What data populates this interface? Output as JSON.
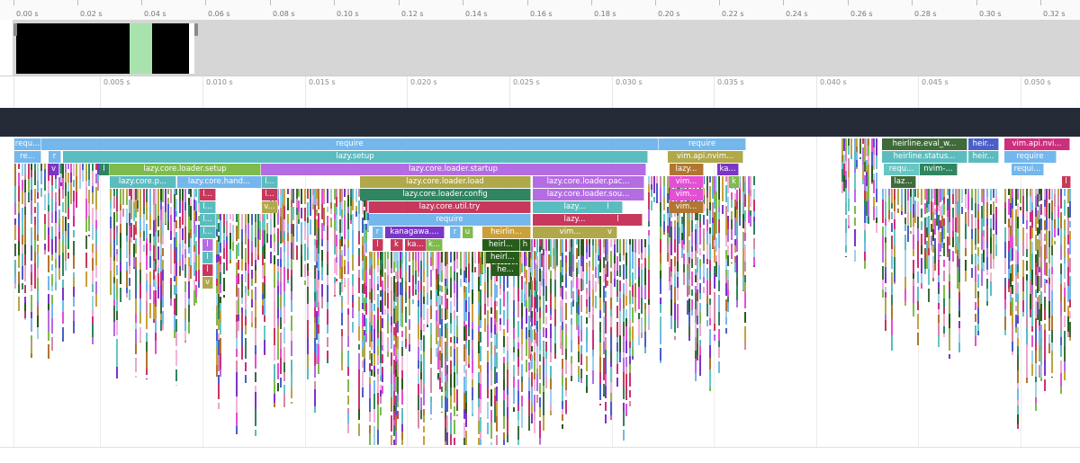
{
  "overview_ruler": {
    "ticks": [
      "0.00 s",
      "0.02 s",
      "0.04 s",
      "0.06 s",
      "0.08 s",
      "0.10 s",
      "0.12 s",
      "0.14 s",
      "0.16 s",
      "0.18 s",
      "0.20 s",
      "0.22 s",
      "0.24 s",
      "0.26 s",
      "0.28 s",
      "0.30 s",
      "0.32 s"
    ]
  },
  "zoom_ruler": {
    "ticks": [
      "0.005 s",
      "0.010 s",
      "0.015 s",
      "0.020 s",
      "0.025 s",
      "0.030 s",
      "0.035 s",
      "0.040 s",
      "0.045 s",
      "0.050 s"
    ]
  },
  "colors": {
    "blue": "#74b7ec",
    "teal": "#5bbcbf",
    "green": "#7fba4e",
    "purple": "#b46ce3",
    "olive": "#b0a84a",
    "darkgreen": "#2f8560",
    "crimson": "#c7385c",
    "magenta": "#e44fd4",
    "navy": "#4b5fc7",
    "darkolive": "#3f6b3a",
    "brown": "#b1762f",
    "forest": "#275c1b",
    "pink": "#cc2f7e",
    "violet": "#7b35c7",
    "orange": "#c9a03a",
    "lightteal": "#67c7c4"
  },
  "frames": [
    {
      "label": "requ...",
      "color": "blue"
    },
    {
      "label": "require",
      "color": "blue"
    },
    {
      "label": "require",
      "color": "blue"
    },
    {
      "label": "heirline.eval_w...",
      "color": "darkolive"
    },
    {
      "label": "heir...",
      "color": "navy"
    },
    {
      "label": "vim.api.nvi...",
      "color": "pink"
    },
    {
      "label": "re...",
      "color": "blue"
    },
    {
      "label": "r",
      "color": "blue"
    },
    {
      "label": "lazy.setup",
      "color": "teal"
    },
    {
      "label": "vim.api.nvim...",
      "color": "olive"
    },
    {
      "label": "heirline.status...",
      "color": "teal"
    },
    {
      "label": "heir...",
      "color": "teal"
    },
    {
      "label": "require",
      "color": "blue"
    },
    {
      "label": "v",
      "color": "violet"
    },
    {
      "label": "l",
      "color": "darkgreen"
    },
    {
      "label": "lazy.core.loader.setup",
      "color": "green"
    },
    {
      "label": "lazy.core.loader.startup",
      "color": "purple"
    },
    {
      "label": "lazy...",
      "color": "brown"
    },
    {
      "label": "ka...",
      "color": "violet"
    },
    {
      "label": "requ...",
      "color": "lightteal"
    },
    {
      "label": "nvim-...",
      "color": "darkgreen"
    },
    {
      "label": "requi...",
      "color": "blue"
    },
    {
      "label": "lazy.core.p...",
      "color": "teal"
    },
    {
      "label": "lazy.core.hand...",
      "color": "blue"
    },
    {
      "label": "l...",
      "color": "teal"
    },
    {
      "label": "lazy.core.loader.load",
      "color": "olive"
    },
    {
      "label": "lazy.core.loader.pac...",
      "color": "purple"
    },
    {
      "label": "vim...",
      "color": "magenta"
    },
    {
      "label": "k",
      "color": "green"
    },
    {
      "label": "laz...",
      "color": "darkolive"
    },
    {
      "label": "l",
      "color": "crimson"
    },
    {
      "label": "l...",
      "color": "crimson"
    },
    {
      "label": "l...",
      "color": "crimson"
    },
    {
      "label": "lazy.core.loader.config",
      "color": "darkgreen"
    },
    {
      "label": "lazy.core.loader.sou...",
      "color": "purple"
    },
    {
      "label": "vim...",
      "color": "magenta"
    },
    {
      "label": "l...",
      "color": "teal"
    },
    {
      "label": "v...",
      "color": "olive"
    },
    {
      "label": "lazy.core.util.try",
      "color": "crimson"
    },
    {
      "label": "lazy...",
      "color": "teal"
    },
    {
      "label": "l",
      "color": "teal"
    },
    {
      "label": "vim...",
      "color": "brown"
    },
    {
      "label": "l...",
      "color": "teal"
    },
    {
      "label": "require",
      "color": "blue"
    },
    {
      "label": "lazy...",
      "color": "crimson"
    },
    {
      "label": "l",
      "color": "crimson"
    },
    {
      "label": "l...",
      "color": "teal"
    },
    {
      "label": "r",
      "color": "blue"
    },
    {
      "label": "kanagawa....",
      "color": "violet"
    },
    {
      "label": "r",
      "color": "blue"
    },
    {
      "label": "u",
      "color": "green"
    },
    {
      "label": "heirlin...",
      "color": "orange"
    },
    {
      "label": "vim...",
      "color": "olive"
    },
    {
      "label": "v",
      "color": "olive"
    },
    {
      "label": "l",
      "color": "purple"
    },
    {
      "label": "l",
      "color": "crimson"
    },
    {
      "label": "k",
      "color": "crimson"
    },
    {
      "label": "ka...",
      "color": "crimson"
    },
    {
      "label": "k...",
      "color": "green"
    },
    {
      "label": "heirl...",
      "color": "forest"
    },
    {
      "label": "h",
      "color": "forest"
    },
    {
      "label": "l",
      "color": "teal"
    },
    {
      "label": "heirl...",
      "color": "forest"
    },
    {
      "label": "l",
      "color": "crimson"
    },
    {
      "label": "he...",
      "color": "forest"
    },
    {
      "label": "v",
      "color": "olive"
    }
  ]
}
